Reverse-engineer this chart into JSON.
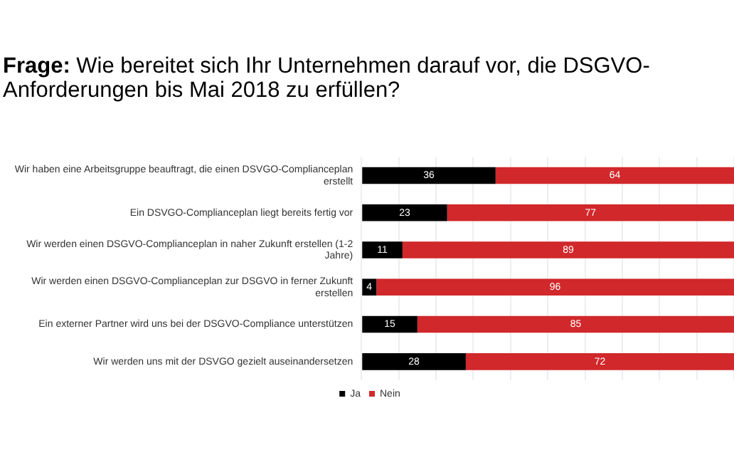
{
  "chart_data": {
    "type": "bar",
    "orientation": "horizontal",
    "stacked": true,
    "title": "Frage: Wie bereitet sich Ihr Unternehmen darauf vor, die DSGVO-Anforderungen bis Mai 2018 zu erfüllen?",
    "categories": [
      "Wir haben eine Arbeitsgruppe beauftragt, die einen DSVGO-Complianceplan erstellt",
      "Ein DSVGO-Complianceplan liegt bereits fertig vor",
      "Wir werden einen DSGVO-Complianceplan in naher Zukunft erstellen (1-2 Jahre)",
      "Wir werden einen DSGVO-Complianceplan zur DSGVO in ferner Zukunft erstellen",
      "Ein externer Partner wird uns bei der DSGVO-Compliance unterstützen",
      "Wir werden uns mit der DSVGO gezielt auseinandersetzen"
    ],
    "series": [
      {
        "name": "Ja",
        "color": "#000000",
        "values": [
          36,
          23,
          11,
          4,
          15,
          28
        ]
      },
      {
        "name": "Nein",
        "color": "#d0282b",
        "values": [
          64,
          77,
          89,
          96,
          85,
          72
        ]
      }
    ],
    "xlim": [
      0,
      100
    ],
    "xticks": [
      {
        "value": 0,
        "label": null
      },
      {
        "value": 10,
        "label": null
      },
      {
        "value": 20,
        "label": null
      },
      {
        "value": 30,
        "label": null
      },
      {
        "value": 40,
        "label": null
      },
      {
        "value": 50,
        "label": null
      },
      {
        "value": 60,
        "label": null
      },
      {
        "value": 70,
        "label": null
      },
      {
        "value": 80,
        "label": null
      },
      {
        "value": 90,
        "label": null
      },
      {
        "value": 100,
        "label": null
      }
    ],
    "tick_labels": "y",
    "grid": "x",
    "legend": "bottom",
    "data_labels": true
  }
}
